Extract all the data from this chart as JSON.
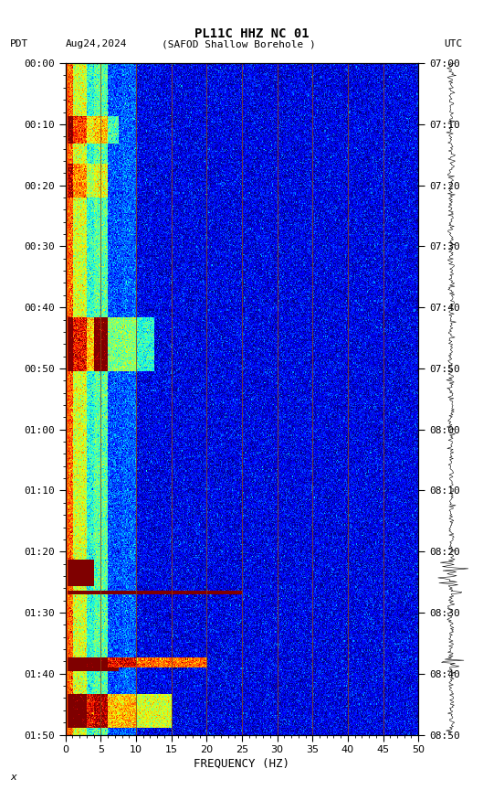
{
  "title_line1": "PL11C HHZ NC 01",
  "xlabel": "FREQUENCY (HZ)",
  "freq_min": 0,
  "freq_max": 50,
  "left_yticks": [
    "00:00",
    "00:10",
    "00:20",
    "00:30",
    "00:40",
    "00:50",
    "01:00",
    "01:10",
    "01:20",
    "01:30",
    "01:40",
    "01:50"
  ],
  "right_yticks": [
    "07:00",
    "07:10",
    "07:20",
    "07:30",
    "07:40",
    "07:50",
    "08:00",
    "08:10",
    "08:20",
    "08:30",
    "08:40",
    "08:50"
  ],
  "n_time": 660,
  "n_freq": 500,
  "background_color": "#ffffff",
  "spectrogram_bg": "#000080",
  "colormap": "jet",
  "fig_width": 5.52,
  "fig_height": 8.64,
  "dpi": 100,
  "vmin": -2,
  "vmax": 3,
  "vertical_line_freqs": [
    5,
    10,
    15,
    20,
    25,
    30,
    35,
    40,
    45
  ],
  "vertical_line_color": "#8B4513",
  "left_border_color": "#FF4500",
  "noise_seed": 42
}
